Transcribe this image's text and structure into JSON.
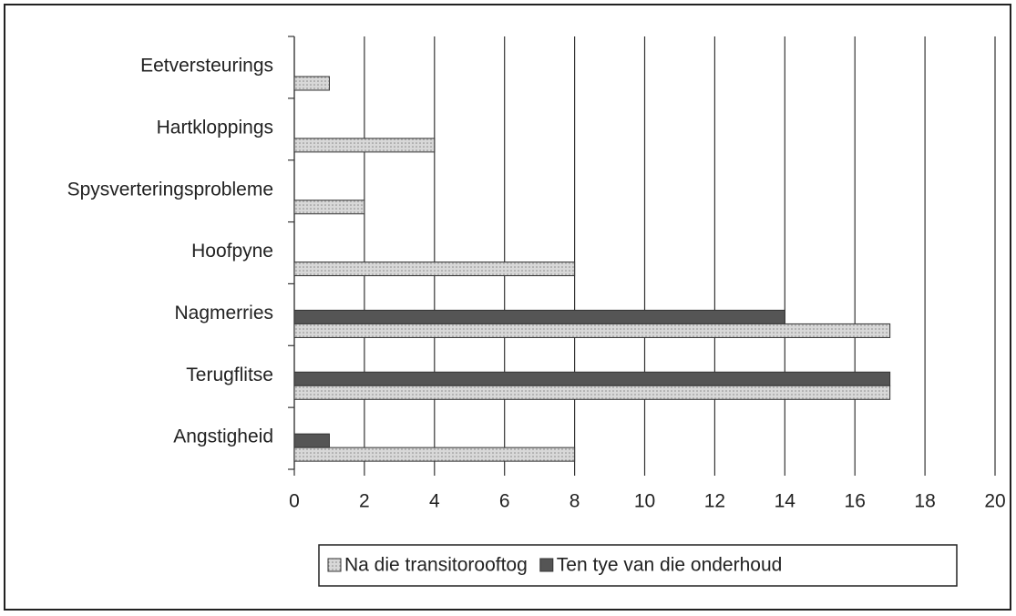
{
  "chart_data": {
    "type": "barh",
    "categories": [
      "Eetversteurings",
      "Hartkloppings",
      "Spysverteringsprobleme",
      "Hoofpyne",
      "Nagmerries",
      "Terugflitse",
      "Angstigheid"
    ],
    "series": [
      {
        "name": "Ten tye van die onderhoud",
        "color": "#555555",
        "values": [
          0,
          0,
          0,
          0,
          14,
          17,
          1
        ]
      },
      {
        "name": "Na die transitorooftog",
        "color": "#d4d4d4",
        "values": [
          1,
          4,
          2,
          8,
          17,
          17,
          8
        ]
      }
    ],
    "xlim": [
      0,
      20
    ],
    "xticks": [
      0,
      2,
      4,
      6,
      8,
      10,
      12,
      14,
      16,
      18,
      20
    ],
    "grid": true
  }
}
